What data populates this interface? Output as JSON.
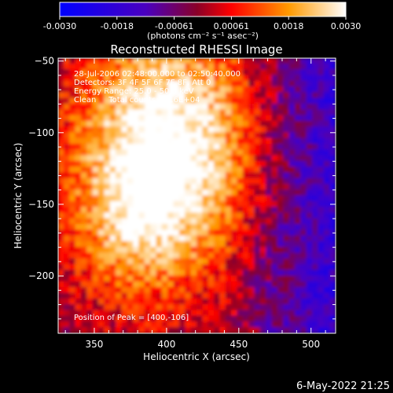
{
  "colorbar": {
    "ticks": [
      "-0.0030",
      "-0.0018",
      "-0.00061",
      "0.00061",
      "0.0018",
      "0.0030"
    ],
    "units_label": "(photons cm⁻² s⁻¹ asec⁻²)",
    "colors": [
      "#0000ff",
      "#5a00c8",
      "#ff0000",
      "#ff8800",
      "#ffffff"
    ]
  },
  "chart_data": {
    "type": "heatmap",
    "title": "Reconstructed RHESSI Image",
    "xlabel": "Heliocentric X (arcsec)",
    "ylabel": "Heliocentric Y (arcsec)",
    "xlim": [
      325,
      517
    ],
    "ylim": [
      -240,
      -48
    ],
    "xticks": [
      350,
      400,
      450,
      500
    ],
    "yticks": [
      -50,
      -100,
      -150,
      -200
    ],
    "value_range": [
      -0.003,
      0.003
    ],
    "peak": [
      400,
      -106
    ],
    "annotations": [
      "28-Jul-2006 02:48:00.000 to 02:50:40.000",
      "Detectors: 3F 4F 5F 6F 7F 8F, Att 0",
      "Energy Range: 25.0 - 50.0 keV",
      "Clean     Total counts: 4.16E+04",
      "Position of Peak = [400,-106]"
    ]
  },
  "footer": {
    "timestamp": "6-May-2022 21:25"
  }
}
